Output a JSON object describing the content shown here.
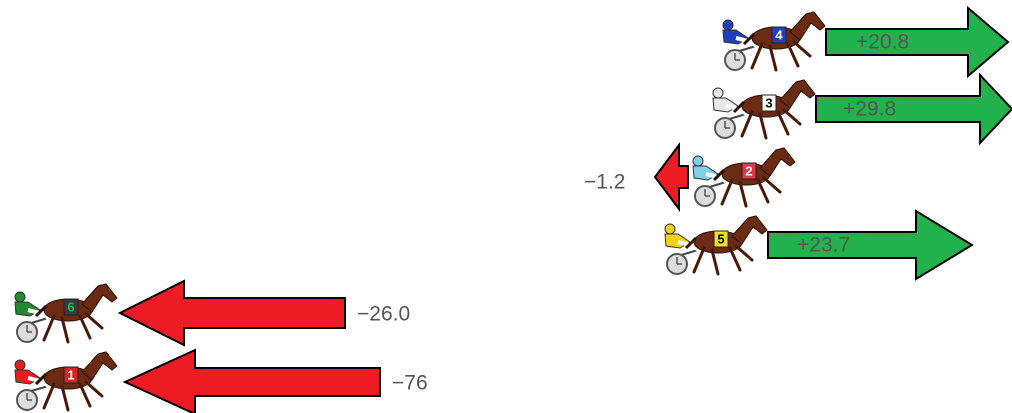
{
  "rows": [
    {
      "number": "4",
      "label": "+20.8"
    },
    {
      "number": "3",
      "label": "+29.8"
    },
    {
      "number": "2",
      "label": "−1.2"
    },
    {
      "number": "5",
      "label": "+23.7"
    },
    {
      "number": "6",
      "label": "−26.0"
    },
    {
      "number": "1",
      "label": "−76"
    }
  ]
}
